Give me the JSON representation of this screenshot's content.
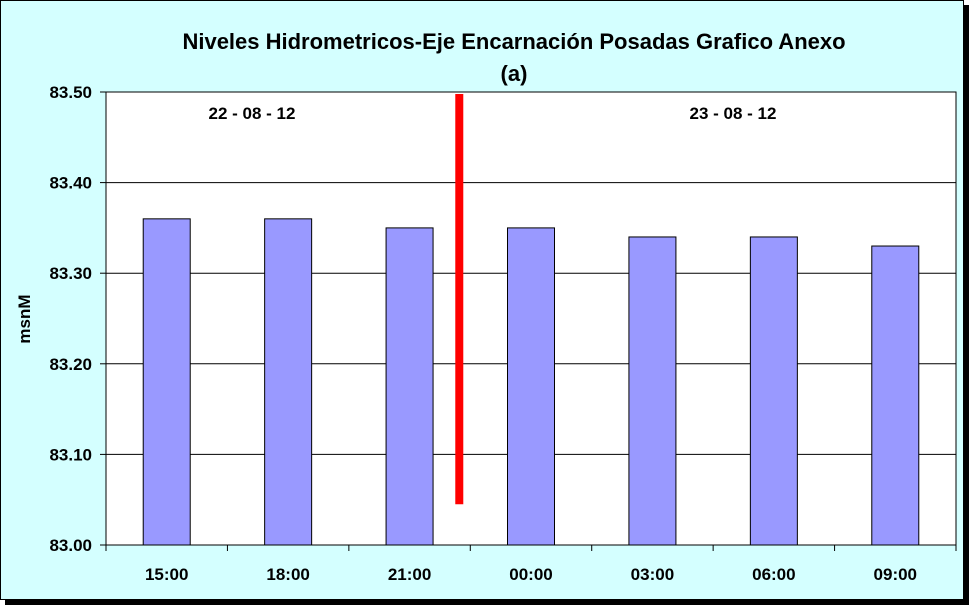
{
  "chart_data": {
    "type": "bar",
    "title": "Niveles Hidrometricos-Eje Encarnación Posadas Grafico Anexo",
    "subtitle": "(a)",
    "xlabel": "",
    "ylabel": "msnM",
    "categories": [
      "15:00",
      "18:00",
      "21:00",
      "00:00",
      "03:00",
      "06:00",
      "09:00"
    ],
    "values": [
      83.36,
      83.36,
      83.35,
      83.35,
      83.34,
      83.34,
      83.33
    ],
    "ylim": [
      83.0,
      83.5
    ],
    "yticks": [
      "83.00",
      "83.10",
      "83.20",
      "83.30",
      "83.40",
      "83.50"
    ],
    "grid": true,
    "annotations": [
      "22 - 08 - 12",
      "23 - 08 - 12"
    ],
    "day_divider_after_index": 2,
    "colors": {
      "background": "#d4ffff",
      "plot_background": "#ffffff",
      "bar": "#9999ff",
      "divider": "#ff0000"
    }
  }
}
